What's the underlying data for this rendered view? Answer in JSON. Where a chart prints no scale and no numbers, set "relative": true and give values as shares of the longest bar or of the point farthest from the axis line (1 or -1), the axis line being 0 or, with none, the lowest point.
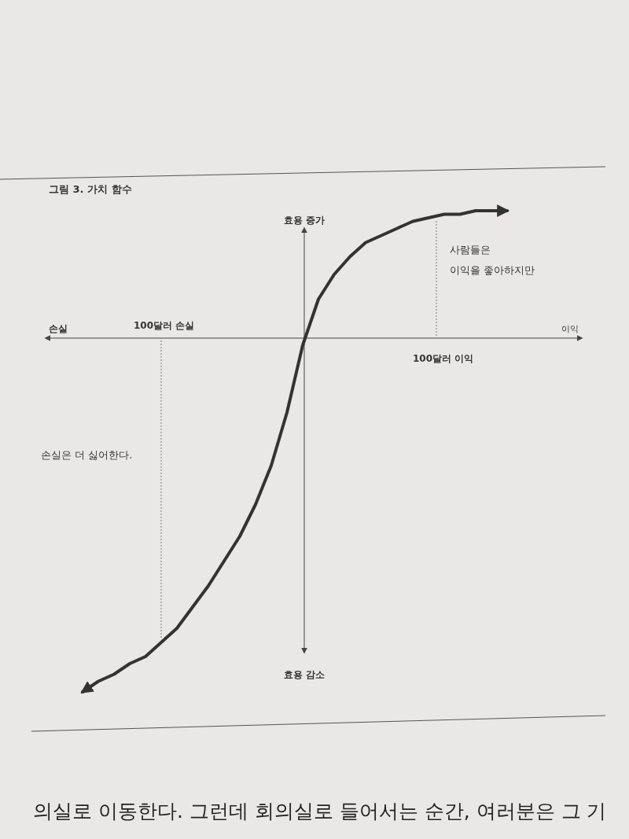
{
  "chart_data": {
    "type": "line",
    "title": "그림 3. 가치 함수",
    "relative": true,
    "line_style": "solid",
    "marker": "none",
    "grid": false,
    "ylabel": "효용 증가",
    "categories": [
      null,
      null,
      null,
      null,
      null,
      null,
      null,
      null,
      null,
      null,
      null,
      null,
      null,
      null,
      null,
      null,
      null,
      null,
      null,
      null,
      null,
      null,
      null,
      null,
      null,
      null,
      null,
      null
    ],
    "series": [
      {
        "color": "#333333",
        "values": [
          -1.0,
          -0.97,
          -0.95,
          -0.92,
          -0.9,
          -0.86,
          -0.82,
          -0.76,
          -0.7,
          -0.63,
          -0.56,
          -0.47,
          -0.36,
          -0.21,
          -0.02,
          0.11,
          0.18,
          0.23,
          0.27,
          0.29,
          0.31,
          0.33,
          0.34,
          0.35,
          0.35,
          0.36,
          0.36,
          0.36
        ]
      }
    ],
    "annotations": [
      "손실",
      "이익",
      "100달러 손실",
      "100달러 이익",
      "효용 감소",
      "사람들은\n이익을 좋아하지만",
      "손실은 더 싫어한다.",
      "의실로 이동한다. 그런데 회의실로 들어서는 순간, 여러분은 그 기"
    ]
  }
}
